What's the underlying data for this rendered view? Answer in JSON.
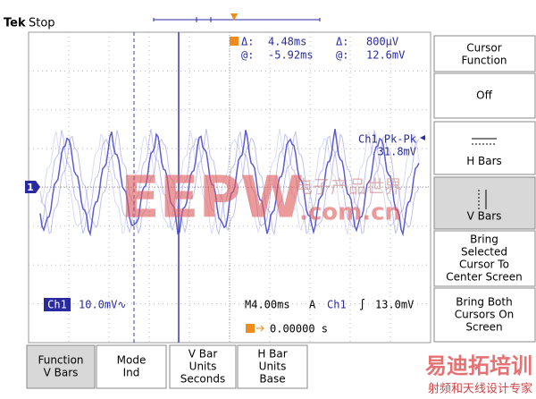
{
  "header": {
    "brand": "Tek",
    "status": "Stop"
  },
  "readouts": {
    "delta_time_label": "Δ:",
    "delta_time": "4.48ms",
    "delta_volt_label": "Δ:",
    "delta_volt": "800µV",
    "at_time_label": "@:",
    "at_time": "-5.92ms",
    "at_volt_label": "@:",
    "at_volt": "12.6mV"
  },
  "measurement": {
    "name": "Ch1 Pk-Pk",
    "value": "31.8mV"
  },
  "channel_marker": "1",
  "status_bar": {
    "channel": "Ch1",
    "scale": "10.0mV∿",
    "timebase": "M4.00ms",
    "mode": "A",
    "trigger_source": "Ch1",
    "trigger_slope": "∫",
    "trigger_level": "13.0mV",
    "trigger_position": "0.00000 s"
  },
  "side_menu": {
    "title": [
      "Cursor",
      "Function"
    ],
    "buttons": [
      [
        "Off"
      ],
      [
        "H Bars"
      ],
      [
        "V Bars"
      ],
      [
        "Bring",
        "Selected",
        "Cursor To",
        "Center Screen"
      ],
      [
        "Bring Both",
        "Cursors On",
        "Screen"
      ]
    ]
  },
  "bottom_menu": [
    [
      "Function",
      "V Bars"
    ],
    [
      "Mode",
      "Ind"
    ],
    [
      "V Bar",
      "Units",
      "Seconds"
    ],
    [
      "H Bar",
      "Units",
      "Base"
    ]
  ],
  "watermark": {
    "main": "EEPW",
    "domain": ".com.cn",
    "cn": "电子产品世界",
    "brand": "易迪拓培训",
    "slogan": "射频和天线设计专家"
  }
}
